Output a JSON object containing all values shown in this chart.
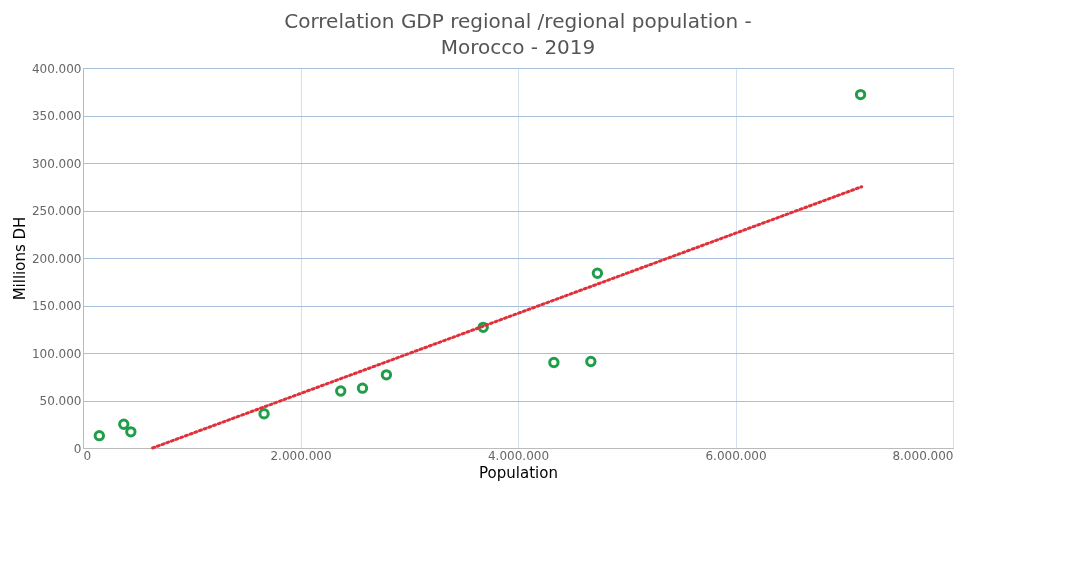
{
  "chart_data": {
    "type": "scatter",
    "title": "Correlation GDP regional /regional population - Morocco - 2019",
    "xlabel": "Population",
    "ylabel": "Millions DH",
    "xlim": [
      0,
      8000000
    ],
    "ylim": [
      0,
      400000
    ],
    "xticks": [
      0,
      {
        "value": 2000000,
        "label": "2.000.000"
      },
      {
        "value": 4000000,
        "label": "4.000.000"
      },
      {
        "value": 6000000,
        "label": "6.000.000"
      },
      {
        "value": 8000000,
        "label": "8.000.000"
      }
    ],
    "yticks": [
      0,
      {
        "value": 50000,
        "label": "50.000"
      },
      {
        "value": 100000,
        "label": "100.000"
      },
      {
        "value": 150000,
        "label": "150.000"
      },
      {
        "value": 200000,
        "label": "200.000"
      },
      {
        "value": 250000,
        "label": "250.000"
      },
      {
        "value": 300000,
        "label": "300.000"
      },
      {
        "value": 350000,
        "label": "350.000"
      },
      {
        "value": 400000,
        "label": "400.000"
      }
    ],
    "grid": true,
    "series": [
      {
        "marker": "circle",
        "color": "#1f9e4a",
        "x": [
          150000,
          375000,
          440000,
          1665000,
          2370000,
          2570000,
          2790000,
          3680000,
          4330000,
          4670000,
          4730000,
          7150000
        ],
        "values": [
          13000,
          25000,
          17000,
          36000,
          60000,
          63000,
          77000,
          127000,
          90000,
          91000,
          184000,
          372000
        ]
      },
      {
        "type": "line",
        "color": "#e0303a",
        "line_style": "dotted",
        "x": [
          640000,
          7160000
        ],
        "values": [
          0,
          275000
        ]
      }
    ]
  }
}
